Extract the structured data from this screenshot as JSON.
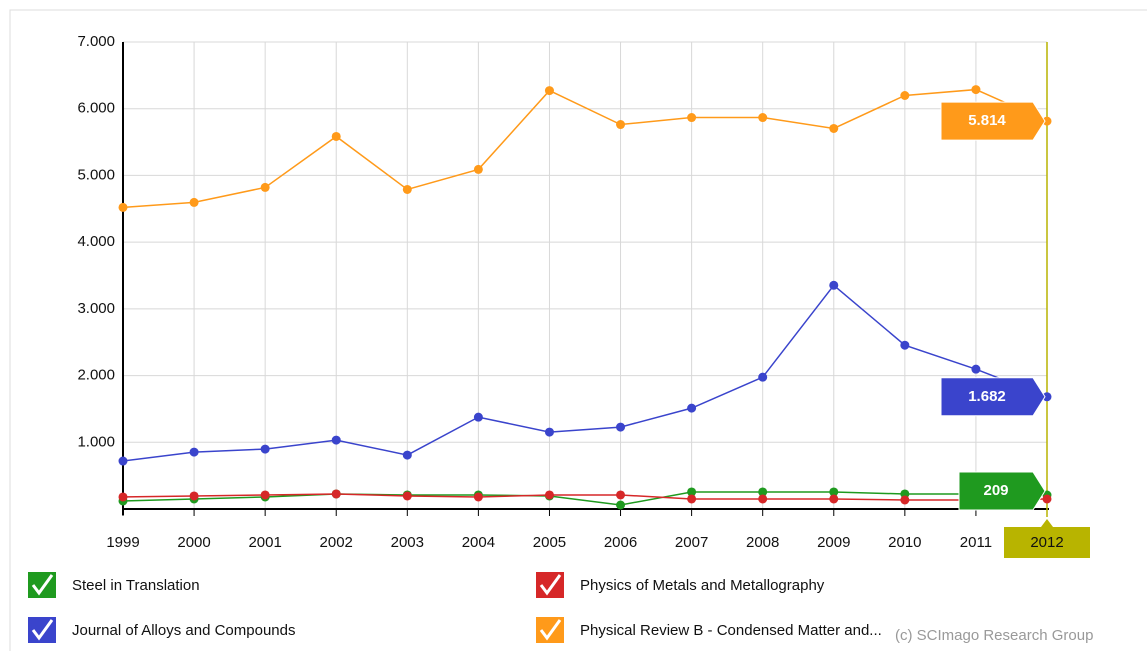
{
  "chart_data": {
    "type": "line",
    "categories": [
      "1999",
      "2000",
      "2001",
      "2002",
      "2003",
      "2004",
      "2005",
      "2006",
      "2007",
      "2008",
      "2009",
      "2010",
      "2011",
      "2012"
    ],
    "series": [
      {
        "name": "Steel in Translation",
        "color": "#1f9a1f",
        "values": [
          120,
          150,
          180,
          225,
          210,
          210,
          195,
          60,
          255,
          255,
          255,
          225,
          225,
          209
        ],
        "value_labels": [
          null,
          null,
          null,
          null,
          null,
          null,
          null,
          null,
          null,
          null,
          null,
          null,
          null,
          "209"
        ]
      },
      {
        "name": "Physics of Metals and Metallography",
        "color": "#d62728",
        "values": [
          180,
          195,
          210,
          225,
          195,
          180,
          210,
          210,
          150,
          150,
          150,
          135,
          135,
          150
        ],
        "value_labels": [
          null,
          null,
          null,
          null,
          null,
          null,
          null,
          null,
          null,
          null,
          null,
          null,
          null,
          null
        ]
      },
      {
        "name": "Journal of Alloys and Compounds",
        "color": "#3a44cc",
        "values": [
          719,
          853,
          898,
          1033,
          808,
          1377,
          1153,
          1228,
          1512,
          1976,
          3353,
          2455,
          2096,
          1682
        ],
        "value_labels": [
          null,
          null,
          null,
          null,
          null,
          null,
          null,
          null,
          null,
          null,
          null,
          null,
          null,
          "1.682"
        ]
      },
      {
        "name": "Physical Review B - Condensed Matter and...",
        "color": "#ff9a1a",
        "values": [
          4521,
          4596,
          4820,
          5584,
          4790,
          5090,
          6272,
          5763,
          5868,
          5868,
          5704,
          6198,
          6287,
          5814
        ],
        "value_labels": [
          null,
          null,
          null,
          null,
          null,
          null,
          null,
          null,
          null,
          null,
          null,
          null,
          null,
          "5.814"
        ]
      }
    ],
    "ylim": [
      0,
      7000
    ],
    "yticks": [
      {
        "value": 1000,
        "label": "1.000"
      },
      {
        "value": 2000,
        "label": "2.000"
      },
      {
        "value": 3000,
        "label": "3.000"
      },
      {
        "value": 4000,
        "label": "4.000"
      },
      {
        "value": 5000,
        "label": "5.000"
      },
      {
        "value": 6000,
        "label": "6.000"
      },
      {
        "value": 7000,
        "label": "7.000"
      }
    ],
    "grid": true,
    "credit": "(c) SCImago Research Group"
  }
}
